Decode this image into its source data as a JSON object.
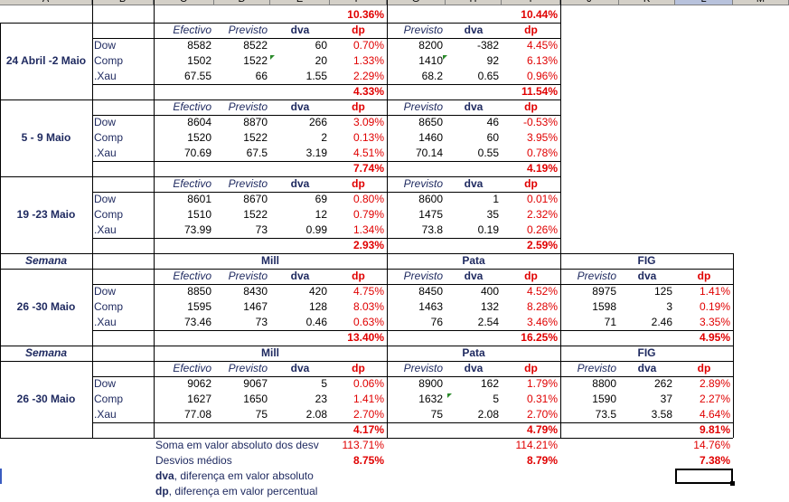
{
  "col_headers": [
    "A",
    "B",
    "C",
    "D",
    "E",
    "F",
    "G",
    "H",
    "I",
    "J",
    "K",
    "L",
    "M"
  ],
  "top": {
    "f": "10.36%",
    "i": "10.44%"
  },
  "sections": [
    {
      "label": "24 Abril -2 Maio",
      "hdr": [
        "Efectivo",
        "Previsto",
        "dva",
        "dp",
        "Previsto",
        "dva",
        "dp"
      ],
      "rows": [
        [
          "Dow",
          "8582",
          "8522",
          "60",
          "0.70%",
          "8200",
          "-382",
          "4.45%"
        ],
        [
          "Comp",
          "1502",
          "1522",
          "20",
          "1.33%",
          "1410",
          "92",
          "6.13%"
        ],
        [
          ".Xau",
          "67.55",
          "66",
          "1.55",
          "2.29%",
          "68.2",
          "0.65",
          "0.96%"
        ]
      ],
      "tot": [
        "4.33%",
        "11.54%"
      ]
    },
    {
      "label": "5 - 9 Maio",
      "hdr": [
        "Efectivo",
        "Previsto",
        "dva",
        "dp",
        "Previsto",
        "dva",
        "dp"
      ],
      "rows": [
        [
          "Dow",
          "8604",
          "8870",
          "266",
          "3.09%",
          "8650",
          "46",
          "-0.53%"
        ],
        [
          "Comp",
          "1520",
          "1522",
          "2",
          "0.13%",
          "1460",
          "60",
          "3.95%"
        ],
        [
          ".Xau",
          "70.69",
          "67.5",
          "3.19",
          "4.51%",
          "70.14",
          "0.55",
          "0.78%"
        ]
      ],
      "tot": [
        "7.74%",
        "4.19%"
      ]
    },
    {
      "label": "19 -23 Maio",
      "hdr": [
        "Efectivo",
        "Previsto",
        "dva",
        "dp",
        "Previsto",
        "dva",
        "dp"
      ],
      "rows": [
        [
          "Dow",
          "8601",
          "8670",
          "69",
          "0.80%",
          "8600",
          "1",
          "0.01%"
        ],
        [
          "Comp",
          "1510",
          "1522",
          "12",
          "0.79%",
          "1475",
          "35",
          "2.32%"
        ],
        [
          ".Xau",
          "73.99",
          "73",
          "0.99",
          "1.34%",
          "73.8",
          "0.19",
          "0.26%"
        ]
      ],
      "tot": [
        "2.93%",
        "2.59%"
      ]
    }
  ],
  "weeks": [
    {
      "semana": "Semana",
      "groups": [
        "Mill",
        "Pata",
        "FIG"
      ],
      "label": "26 -30 Maio",
      "hdr": [
        "Efectivo",
        "Previsto",
        "dva",
        "dp",
        "Previsto",
        "dva",
        "dp",
        "Previsto",
        "dva",
        "dp"
      ],
      "rows": [
        [
          "Dow",
          "8850",
          "8430",
          "420",
          "4.75%",
          "8450",
          "400",
          "4.52%",
          "8975",
          "125",
          "1.41%"
        ],
        [
          "Comp",
          "1595",
          "1467",
          "128",
          "8.03%",
          "1463",
          "132",
          "8.28%",
          "1598",
          "3",
          "0.19%"
        ],
        [
          ".Xau",
          "73.46",
          "73",
          "0.46",
          "0.63%",
          "76",
          "2.54",
          "3.46%",
          "71",
          "2.46",
          "3.35%"
        ]
      ],
      "tot": [
        "13.40%",
        "16.25%",
        "4.95%"
      ]
    },
    {
      "semana": "Semana",
      "groups": [
        "Mill",
        "Pata",
        "FIG"
      ],
      "label": "26 -30 Maio",
      "hdr": [
        "Efectivo",
        "Previsto",
        "dva",
        "dp",
        "Previsto",
        "dva",
        "dp",
        "Previsto",
        "dva",
        "dp"
      ],
      "rows": [
        [
          "Dow",
          "9062",
          "9067",
          "5",
          "0.06%",
          "8900",
          "162",
          "1.79%",
          "8800",
          "262",
          "2.89%"
        ],
        [
          "Comp",
          "1627",
          "1650",
          "23",
          "1.41%",
          "1632",
          "5",
          "0.31%",
          "1590",
          "37",
          "2.27%"
        ],
        [
          ".Xau",
          "77.08",
          "75",
          "2.08",
          "2.70%",
          "75",
          "2.08",
          "2.70%",
          "73.5",
          "3.58",
          "4.64%"
        ]
      ],
      "tot": [
        "4.17%",
        "4.79%",
        "9.81%"
      ]
    }
  ],
  "footer": {
    "soma_label": "Soma em valor absoluto dos desv",
    "soma": [
      "113.71%",
      "114.21%",
      "14.76%"
    ],
    "desvios_label": "Desvios médios",
    "desvios": [
      "8.75%",
      "8.79%",
      "7.38%"
    ],
    "legend1_key": "dva",
    "legend1_text": ", diferença em valor absoluto",
    "legend2_key": "dp",
    "legend2_text": ", diferença em valor percentual"
  },
  "colors": {
    "header_text": "#1f2a60",
    "red": "#e00000",
    "comment_marker": "#2a8a2a"
  }
}
